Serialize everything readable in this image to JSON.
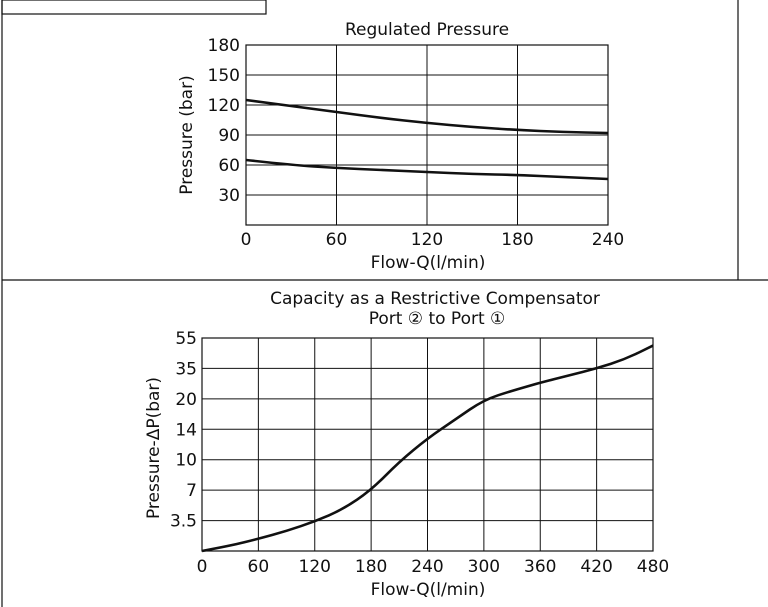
{
  "chart_data": [
    {
      "type": "line",
      "title": "Regulated Pressure",
      "xlabel": "Flow-Q(l/min)",
      "ylabel": "Pressure (bar)",
      "xlim": [
        0,
        240
      ],
      "ylim": [
        0,
        180
      ],
      "x_ticks": [
        "0",
        "60",
        "120",
        "180",
        "240"
      ],
      "y_ticks": [
        "30",
        "60",
        "90",
        "120",
        "150",
        "180"
      ],
      "grid": true,
      "series": [
        {
          "x": [
            0,
            30,
            60,
            90,
            120,
            150,
            180,
            210,
            240
          ],
          "values": [
            125,
            119,
            113,
            107,
            102,
            98,
            95,
            93,
            92
          ]
        },
        {
          "x": [
            0,
            30,
            60,
            90,
            120,
            150,
            180,
            210,
            240
          ],
          "values": [
            65,
            60,
            57,
            55,
            53,
            51,
            50,
            48,
            46
          ]
        }
      ]
    },
    {
      "type": "line",
      "title": "Capacity as a Restrictive Compensator",
      "subtitle": "Port ② to Port ①",
      "xlabel": "Flow-Q(l/min)",
      "ylabel": "Pressure-ΔP(bar)",
      "xlim": [
        0,
        480
      ],
      "x_ticks": [
        "0",
        "60",
        "120",
        "180",
        "240",
        "300",
        "360",
        "420",
        "480"
      ],
      "y_ticks": [
        "3.5",
        "7",
        "10",
        "14",
        "20",
        "35",
        "55"
      ],
      "grid": true,
      "series": [
        {
          "x": [
            0,
            30,
            60,
            90,
            120,
            150,
            180,
            210,
            240,
            270,
            300,
            330,
            360,
            390,
            420,
            450,
            480
          ],
          "values": [
            0,
            0.6,
            1.4,
            2.3,
            3.4,
            4.8,
            7,
            9.8,
            12.8,
            16,
            19.8,
            24,
            28,
            31.5,
            35,
            41,
            50
          ]
        }
      ]
    }
  ]
}
